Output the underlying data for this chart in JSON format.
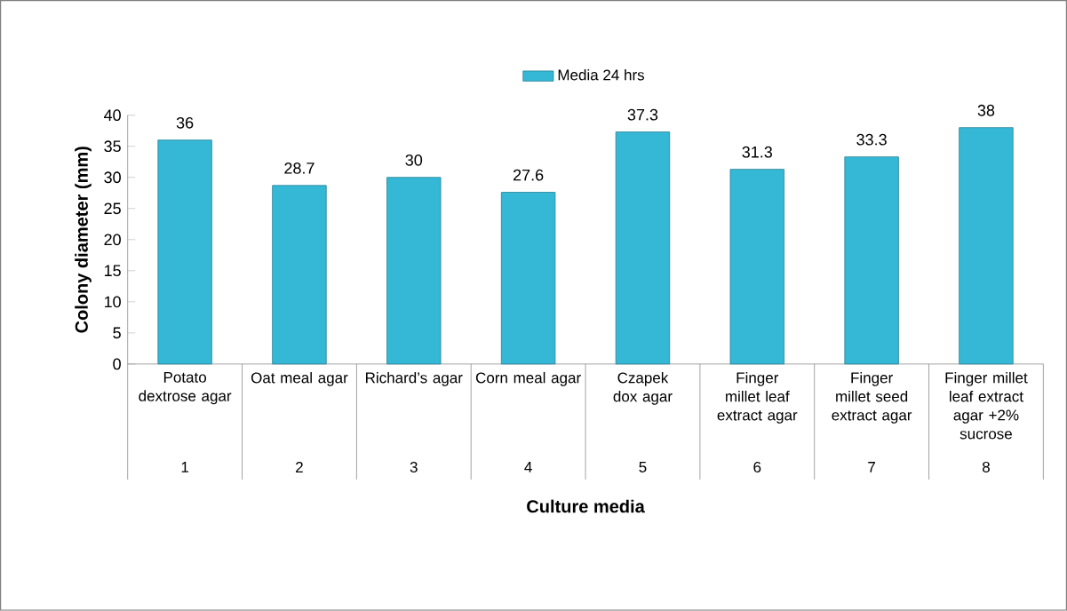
{
  "chart_data": {
    "type": "bar",
    "categories": [
      "Potato dextrose agar",
      "Oat meal agar",
      "Richard’s agar",
      "Corn meal agar",
      "Czapek dox agar",
      "Finger millet leaf extract agar",
      "Finger millet seed extract agar",
      "Finger millet leaf extract agar +2% sucrose"
    ],
    "series": [
      {
        "name": "Media 24 hrs",
        "color": "#35b8d6",
        "values": [
          36,
          28.7,
          30,
          27.6,
          37.3,
          31.3,
          33.3,
          38
        ]
      }
    ],
    "value_labels": [
      "36",
      "28.7",
      "30",
      "27.6",
      "37.3",
      "31.3",
      "33.3",
      "38"
    ],
    "annotations": [
      "1",
      "2",
      "3",
      "4",
      "5",
      "6",
      "7",
      "8"
    ],
    "xlabel": "Culture media",
    "ylabel": "Colony diameter (mm)",
    "ylim": [
      0,
      40
    ],
    "yticks": [
      0,
      5,
      10,
      15,
      20,
      25,
      30,
      35,
      40
    ],
    "legend": "top"
  }
}
